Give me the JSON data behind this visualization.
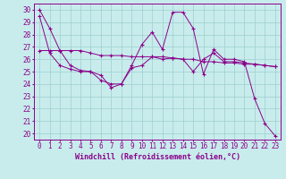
{
  "xlabel": "Windchill (Refroidissement éolien,°C)",
  "background_color": "#c8ecec",
  "line_color": "#8b008b",
  "grid_color": "#9ecece",
  "x_ticks": [
    0,
    1,
    2,
    3,
    4,
    5,
    6,
    7,
    8,
    9,
    10,
    11,
    12,
    13,
    14,
    15,
    16,
    17,
    18,
    19,
    20,
    21,
    22,
    23
  ],
  "y_ticks": [
    20,
    21,
    22,
    23,
    24,
    25,
    26,
    27,
    28,
    29,
    30
  ],
  "ylim": [
    19.5,
    30.5
  ],
  "xlim": [
    -0.5,
    23.5
  ],
  "series1": [
    30.0,
    28.5,
    26.7,
    25.5,
    25.1,
    25.0,
    24.7,
    23.7,
    24.0,
    25.5,
    27.2,
    28.2,
    26.8,
    29.8,
    29.8,
    28.5,
    24.8,
    26.8,
    26.0,
    26.0,
    25.8,
    22.8,
    20.8,
    19.8
  ],
  "series2": [
    26.7,
    26.7,
    26.7,
    26.7,
    26.7,
    26.5,
    26.3,
    26.3,
    26.3,
    26.2,
    26.2,
    26.2,
    26.2,
    26.1,
    26.0,
    26.0,
    25.8,
    25.8,
    25.7,
    25.7,
    25.6,
    25.6,
    25.5,
    25.4
  ],
  "series3": [
    29.5,
    26.5,
    25.5,
    25.2,
    25.0,
    25.0,
    24.3,
    24.0,
    24.0,
    25.3,
    25.5,
    26.2,
    26.0,
    26.1,
    26.0,
    25.0,
    26.0,
    26.5,
    25.8,
    25.8,
    25.7,
    25.6,
    25.5,
    25.4
  ],
  "xlabel_fontsize": 6,
  "tick_fontsize": 5.5
}
